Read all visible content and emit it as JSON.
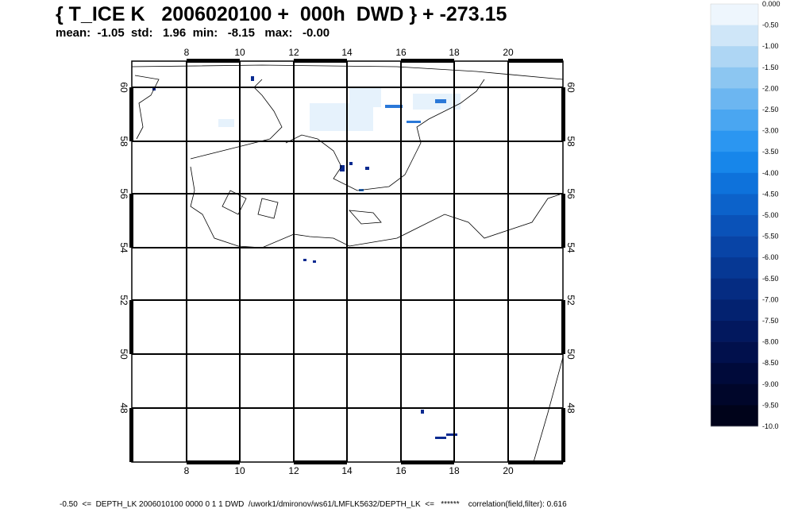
{
  "header": {
    "title": "{ T_ICE K   2006020100 +  000h  DWD } + -273.15",
    "stats": "mean:  -1.05  std:   1.96  min:   -8.15   max:   -0.00"
  },
  "map": {
    "x_labels": [
      "8",
      "10",
      "12",
      "14",
      "16",
      "18",
      "20"
    ],
    "y_labels": [
      "60",
      "58",
      "56",
      "54",
      "52",
      "50",
      "48"
    ]
  },
  "colorbar": {
    "labels": [
      "0.000",
      "-0.50",
      "-1.00",
      "-1.50",
      "-2.00",
      "-2.50",
      "-3.00",
      "-3.50",
      "-4.00",
      "-4.50",
      "-5.00",
      "-5.50",
      "-6.00",
      "-6.50",
      "-7.00",
      "-7.50",
      "-8.00",
      "-8.50",
      "-9.00",
      "-9.50",
      "-10.0"
    ],
    "colors": [
      "#eef6fd",
      "#cfe6f8",
      "#aed6f4",
      "#8cc6f1",
      "#6cb6f1",
      "#4aa6f1",
      "#2b96f1",
      "#1786ea",
      "#0e72db",
      "#0c62ca",
      "#0a52b8",
      "#0844a6",
      "#063894",
      "#052c82",
      "#032270",
      "#02185e",
      "#01104c",
      "#000a3a",
      "#00062a",
      "#00031a"
    ]
  },
  "footer": "-0.50  <=  DEPTH_LK 2006010100 0000 0 1 1 DWD  /uwork1/dmironov/ws61/LMFLK5632/DEPTH_LK  <=   ******    correlation(field,filter): 0.616"
}
